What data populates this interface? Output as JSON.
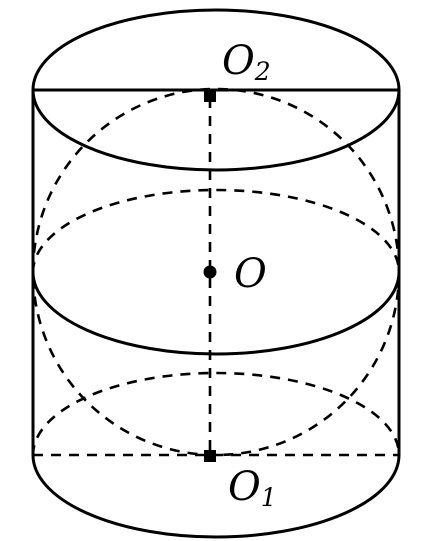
{
  "figure": {
    "description_type": "cylinder with inscribed sphere",
    "colors": {
      "stroke": "#000000",
      "background": "#ffffff"
    },
    "labels": {
      "top_center": {
        "main": "O",
        "subscript": "2"
      },
      "center": {
        "main": "O"
      },
      "bottom_center": {
        "main": "O",
        "subscript": "1"
      }
    }
  }
}
